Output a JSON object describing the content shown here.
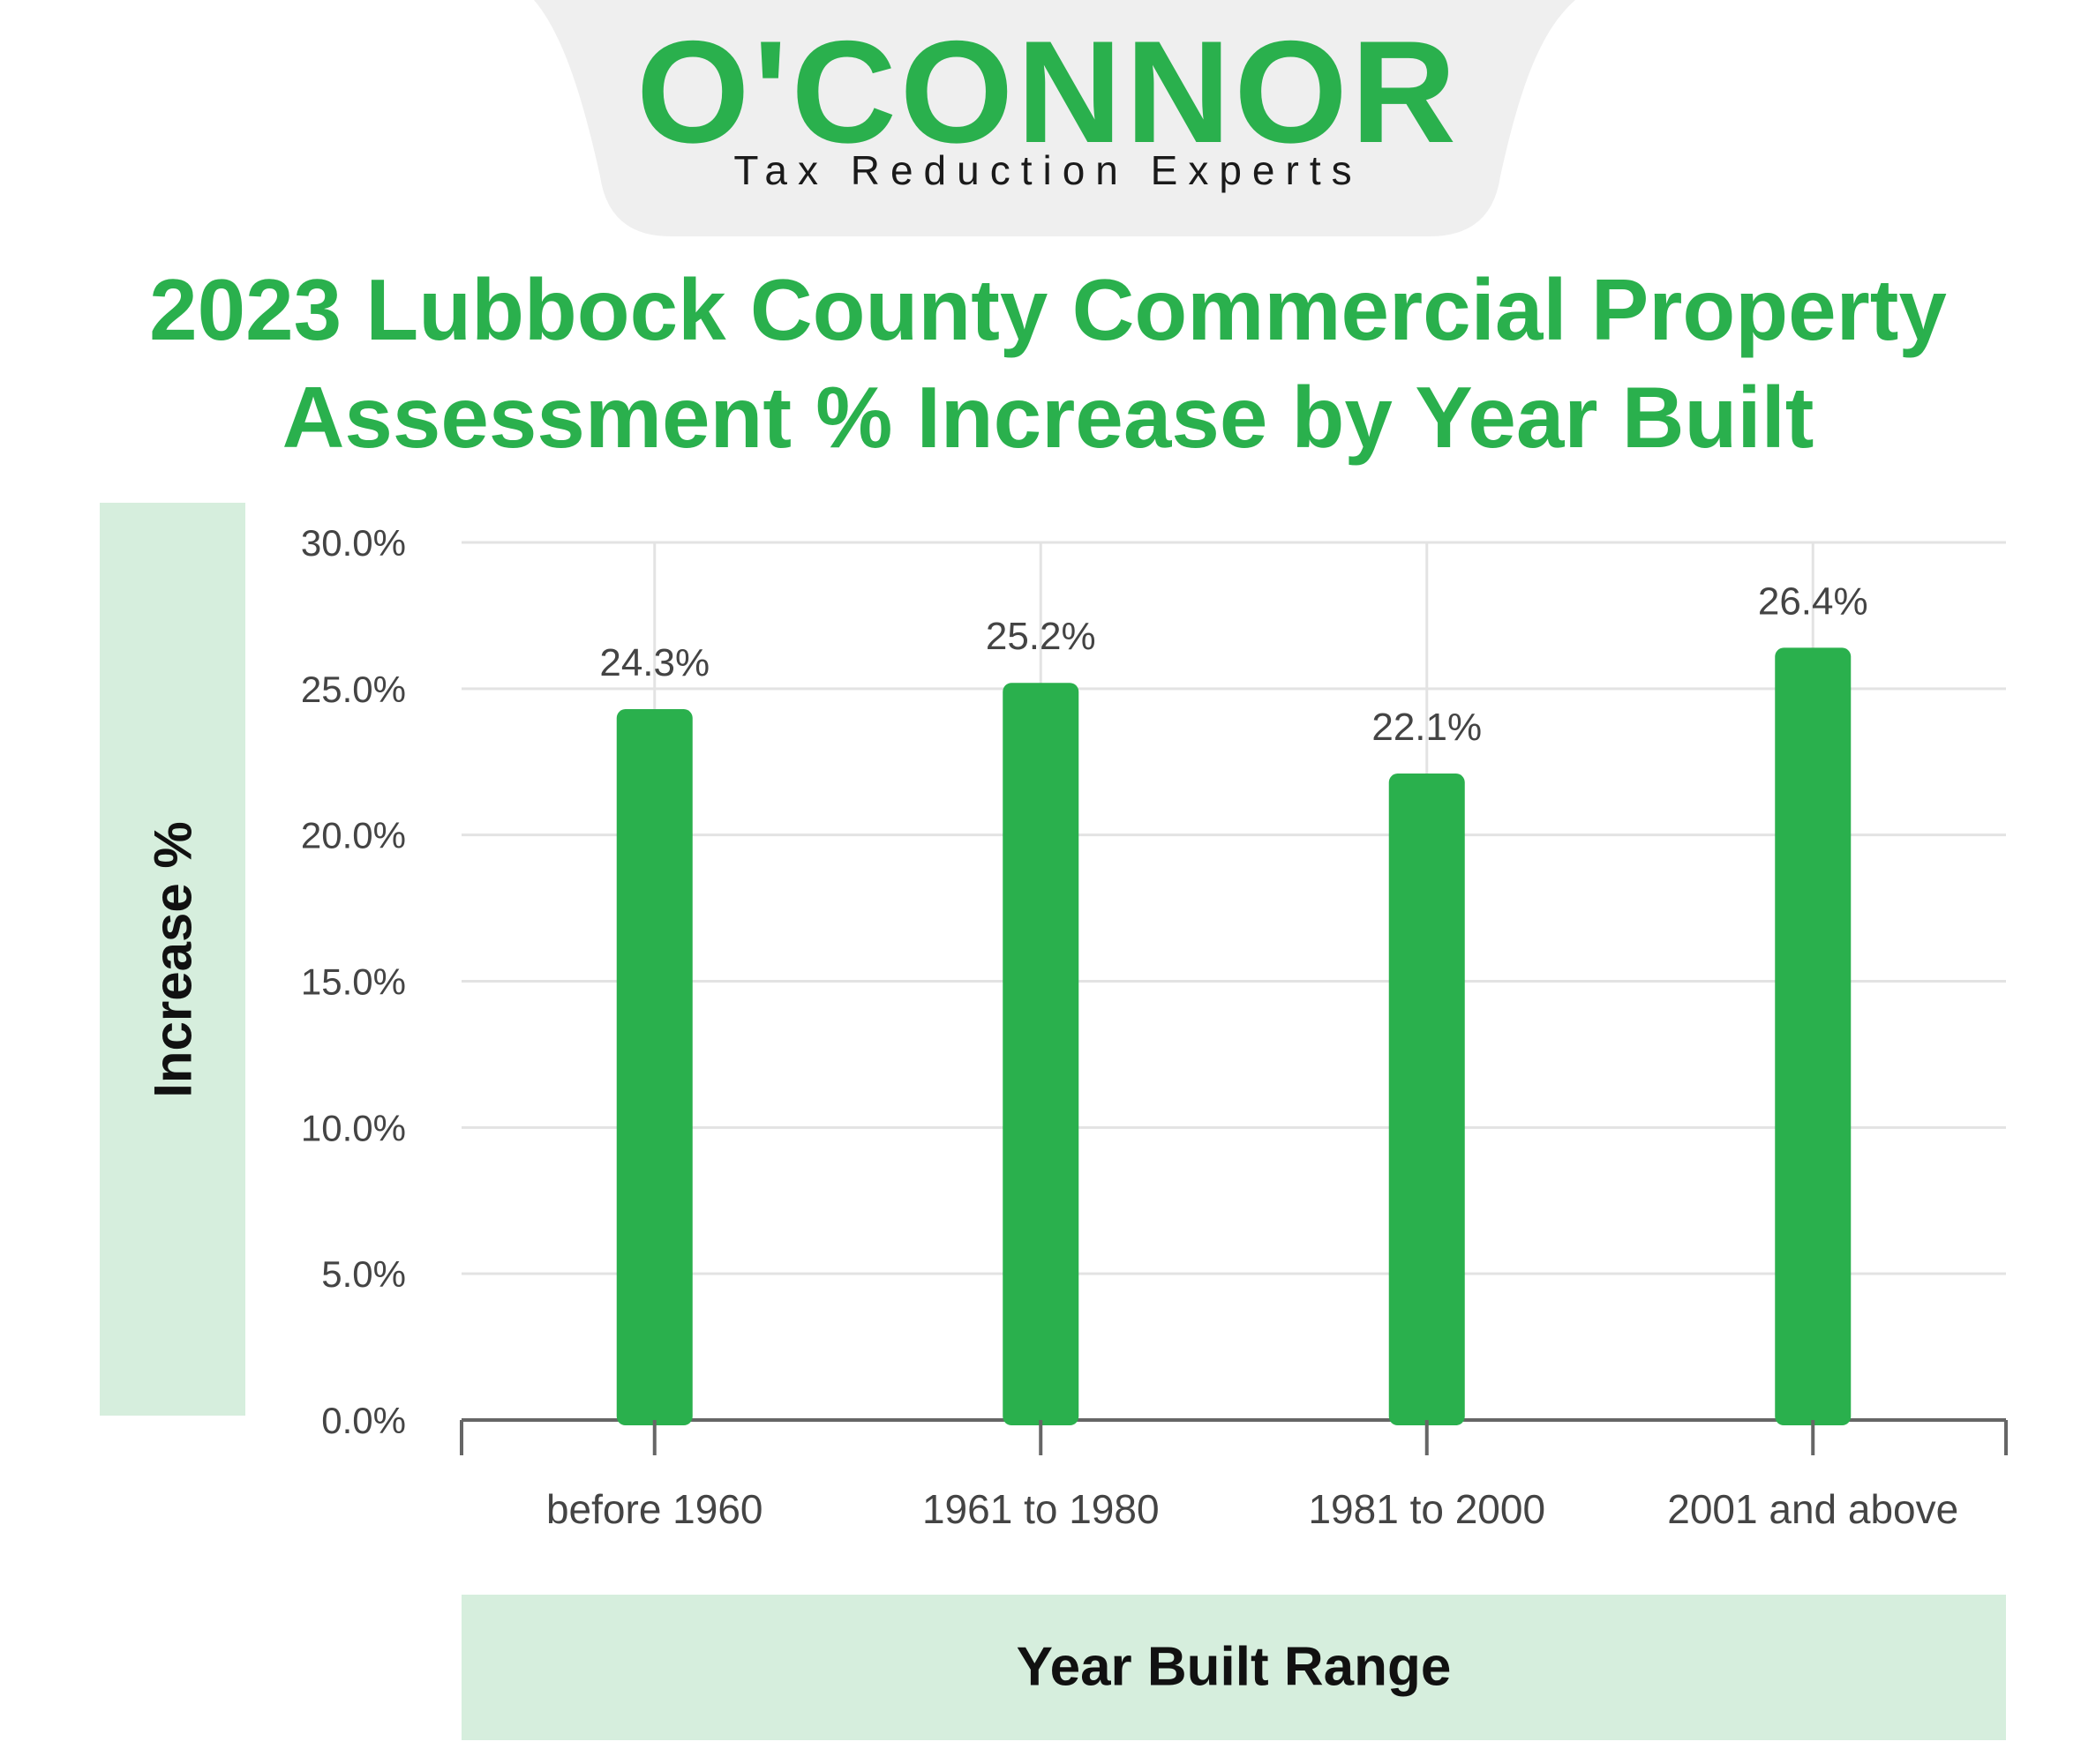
{
  "brand": {
    "name": "O'CONNOR",
    "tagline": "Tax Reduction Experts"
  },
  "title": {
    "line1": "2023 Lubbock County Commercial Property",
    "line2": "Assessment % Increase by Year Built"
  },
  "colors": {
    "accent": "#2ab04d",
    "label_box": "#d6eedd",
    "logo_tab": "#efefef",
    "grid": "#e3e3e3"
  },
  "chart_data": {
    "type": "bar",
    "title": "2023 Lubbock County Commercial Property Assessment % Increase by Year Built",
    "xlabel": "Year Built Range",
    "ylabel": "Increase %",
    "categories": [
      "before 1960",
      "1961 to 1980",
      "1981 to 2000",
      "2001 and above"
    ],
    "values": [
      24.3,
      25.2,
      22.1,
      26.4
    ],
    "data_labels": [
      "24.3%",
      "25.2%",
      "22.1%",
      "26.4%"
    ],
    "ylim": [
      0,
      30
    ],
    "y_ticks": [
      0,
      5,
      10,
      15,
      20,
      25,
      30
    ],
    "y_tick_labels": [
      "0.0%",
      "5.0%",
      "10.0%",
      "15.0%",
      "20.0%",
      "25.0%",
      "30.0%"
    ],
    "grid": true,
    "legend": "none"
  }
}
